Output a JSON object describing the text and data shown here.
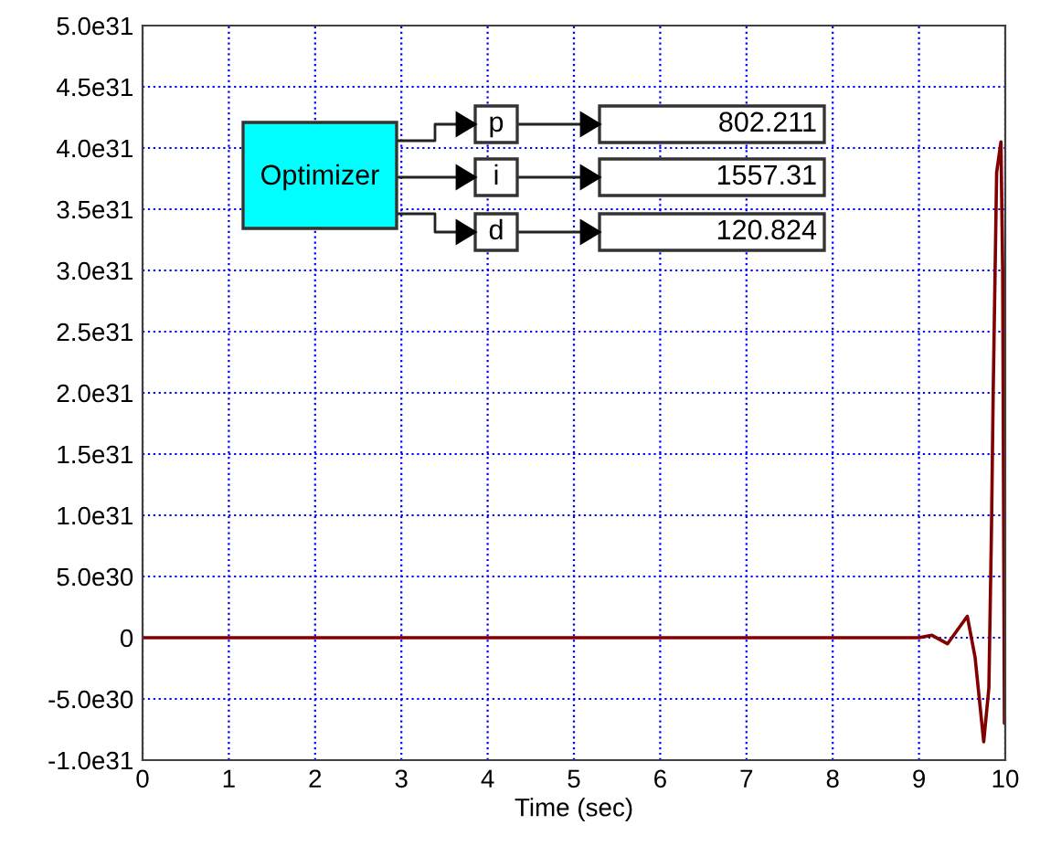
{
  "chart_data": {
    "type": "line",
    "xlabel": "Time (sec)",
    "x": [
      0,
      9.0,
      9.15,
      9.33,
      9.56,
      9.65,
      9.75,
      9.81,
      9.84,
      9.86,
      9.9,
      9.95,
      9.97,
      9.99,
      10
    ],
    "series": [
      {
        "color": "#800000",
        "values": [
          0,
          0,
          2e+29,
          -5e+29,
          1.75e+30,
          -1.6e+30,
          -8.5e+30,
          -4.1e+30,
          8.8e+30,
          2e+31,
          3.8e+31,
          4.05e+31,
          3e+31,
          -7e+30,
          -6e+30
        ]
      }
    ],
    "xlim": [
      0,
      10
    ],
    "xticks": [
      0,
      1,
      2,
      3,
      4,
      5,
      6,
      7,
      8,
      9,
      10
    ],
    "ylim": [
      -1e+31,
      5e+31
    ],
    "yticks": [
      {
        "value": -1e+31,
        "label": "-1.0e31"
      },
      {
        "value": -5e+30,
        "label": "-5.0e30"
      },
      0,
      {
        "value": 5e+30,
        "label": "5.0e30"
      },
      {
        "value": 1e+31,
        "label": "1.0e31"
      },
      {
        "value": 1.5e+31,
        "label": "1.5e31"
      },
      {
        "value": 2e+31,
        "label": "2.0e31"
      },
      {
        "value": 2.5e+31,
        "label": "2.5e31"
      },
      {
        "value": 3e+31,
        "label": "3.0e31"
      },
      {
        "value": 3.5e+31,
        "label": "3.5e31"
      },
      {
        "value": 4e+31,
        "label": "4.0e31"
      },
      {
        "value": 4.5e+31,
        "label": "4.5e31"
      },
      {
        "value": 5e+31,
        "label": "5.0e31"
      }
    ],
    "grid": true,
    "legend": false,
    "annotations": [
      "Optimizer",
      "p",
      "i",
      "d",
      "802.211",
      "1557.31",
      "120.824"
    ]
  }
}
